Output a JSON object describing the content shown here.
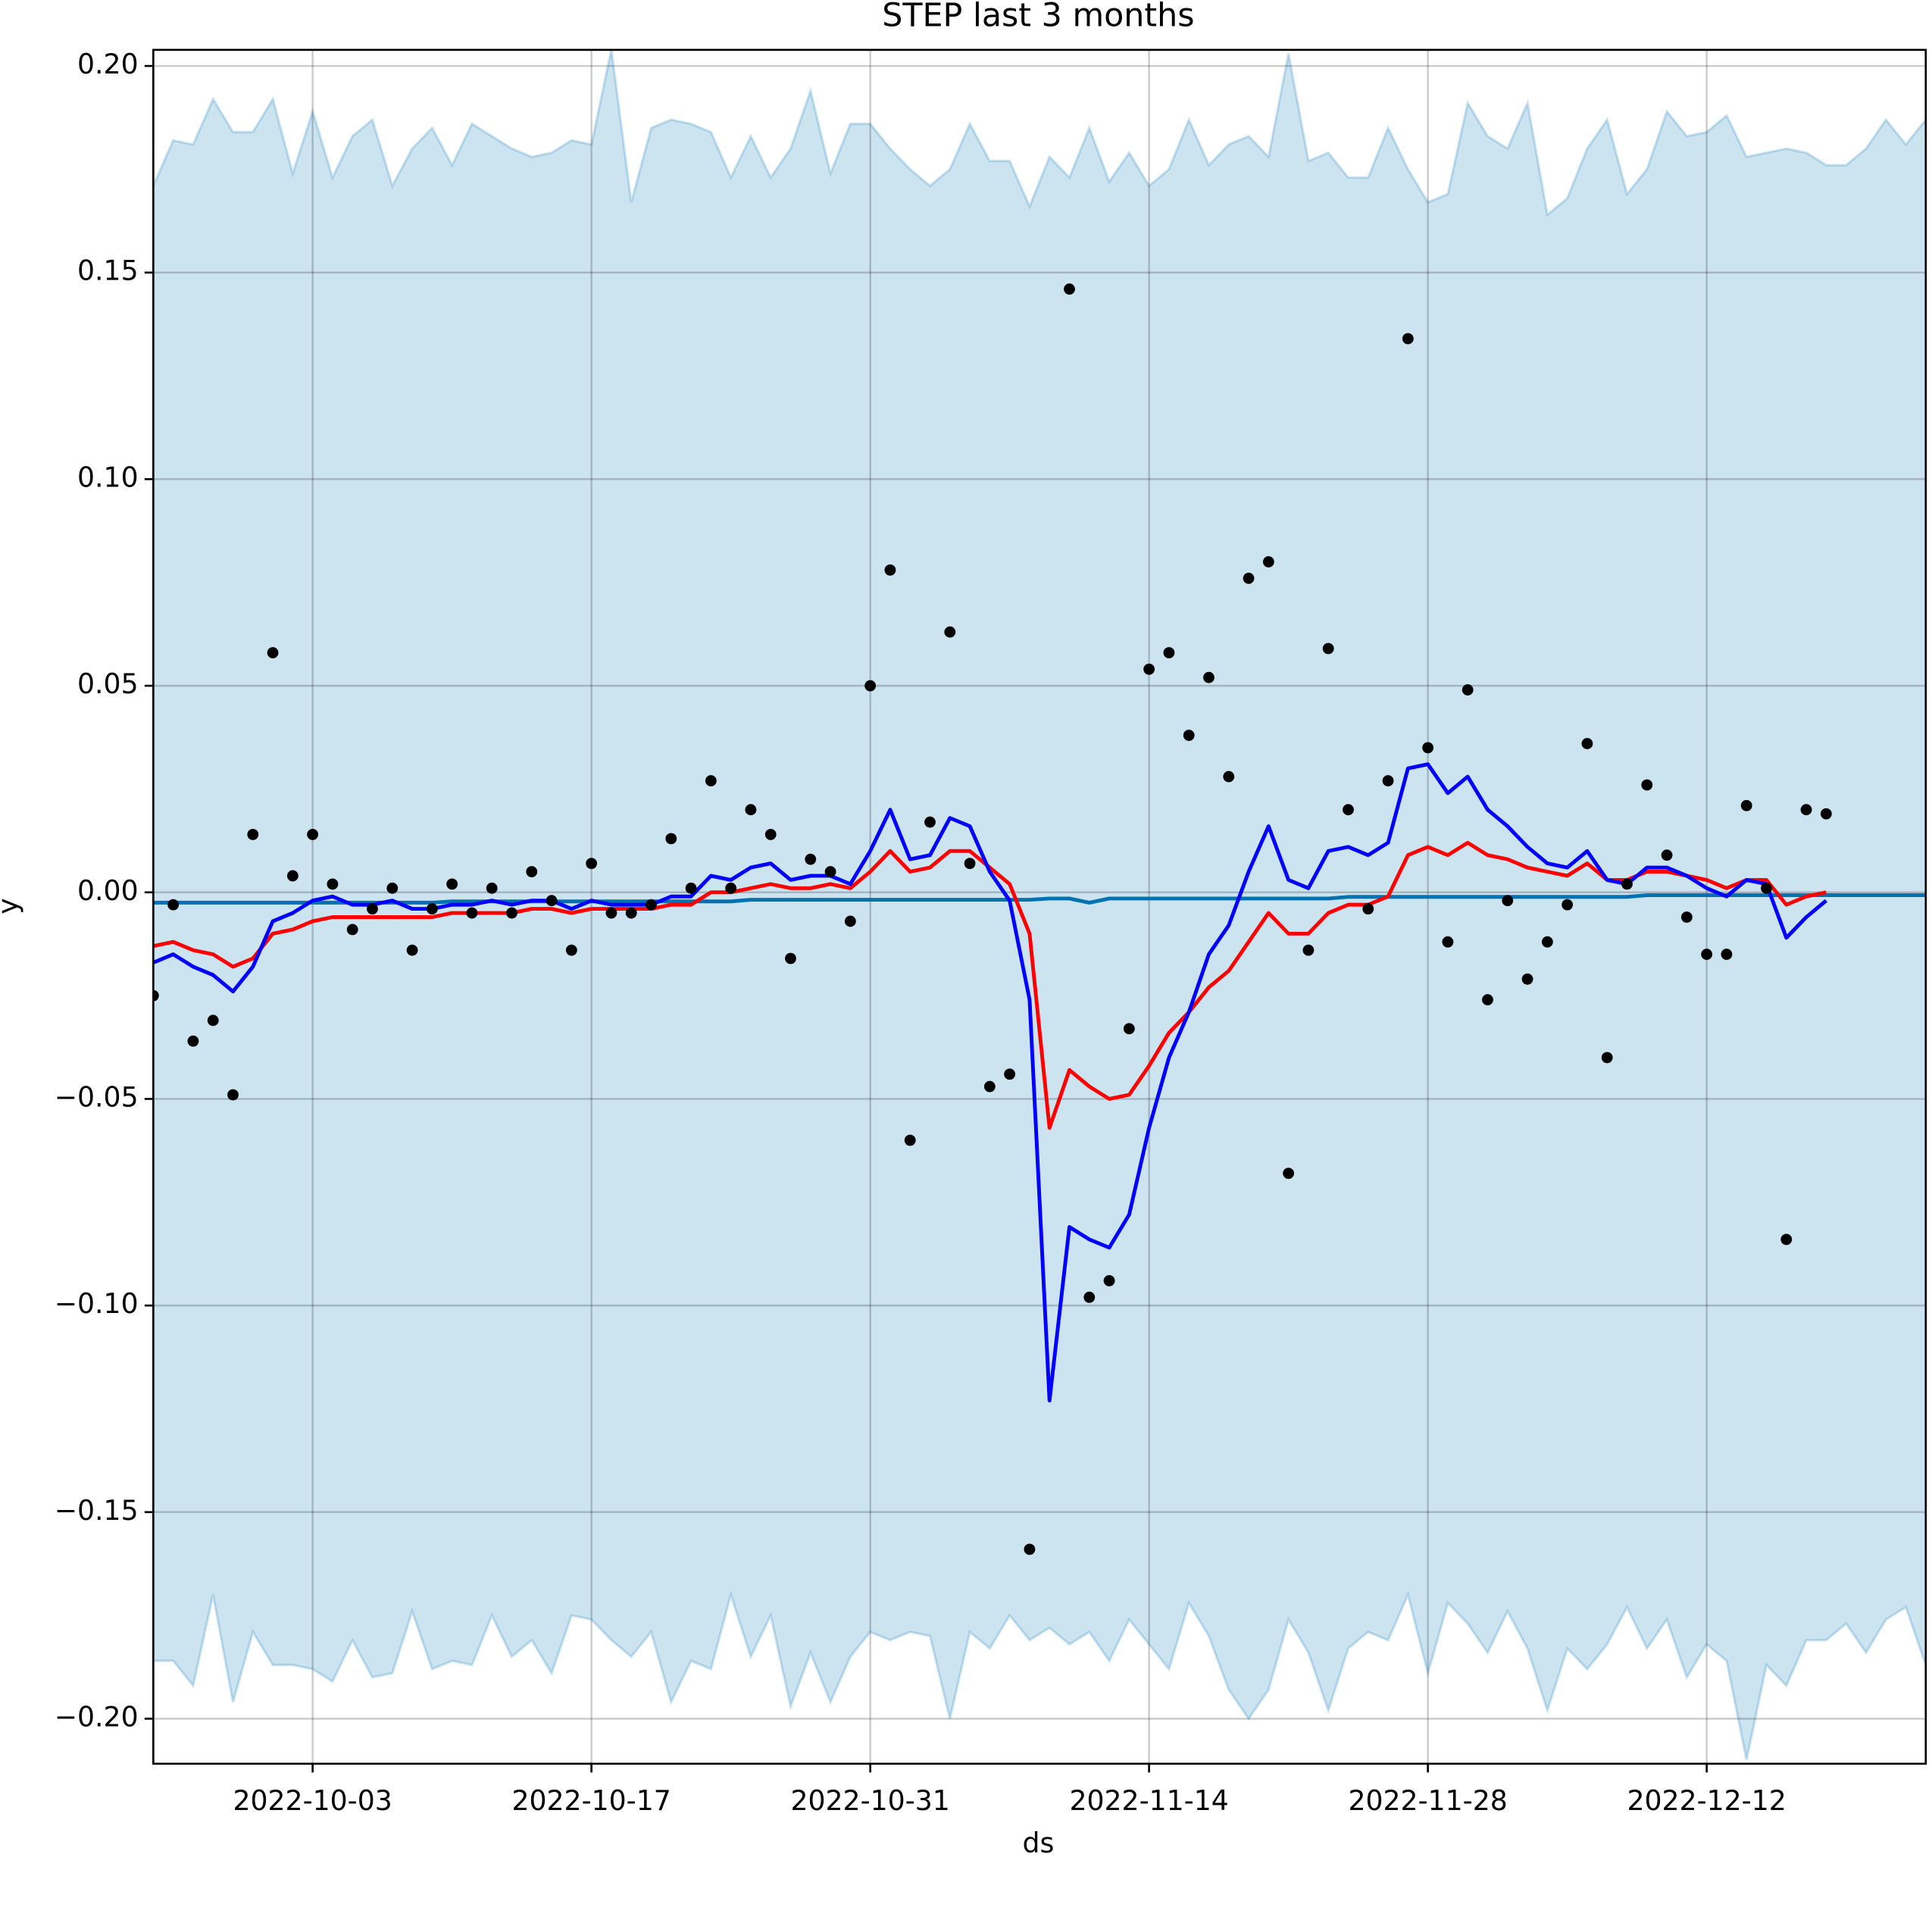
{
  "chart_data": {
    "type": "forecast",
    "title": "STEP last 3 months",
    "x_label": "ds",
    "y_label": "y",
    "x": [
      "2022-09-25",
      "2022-09-26",
      "2022-09-27",
      "2022-09-28",
      "2022-09-29",
      "2022-09-30",
      "2022-10-01",
      "2022-10-02",
      "2022-10-03",
      "2022-10-04",
      "2022-10-05",
      "2022-10-06",
      "2022-10-07",
      "2022-10-08",
      "2022-10-09",
      "2022-10-10",
      "2022-10-11",
      "2022-10-12",
      "2022-10-13",
      "2022-10-14",
      "2022-10-15",
      "2022-10-16",
      "2022-10-17",
      "2022-10-18",
      "2022-10-19",
      "2022-10-20",
      "2022-10-21",
      "2022-10-22",
      "2022-10-23",
      "2022-10-24",
      "2022-10-25",
      "2022-10-26",
      "2022-10-27",
      "2022-10-28",
      "2022-10-29",
      "2022-10-30",
      "2022-10-31",
      "2022-11-01",
      "2022-11-02",
      "2022-11-03",
      "2022-11-04",
      "2022-11-05",
      "2022-11-06",
      "2022-11-07",
      "2022-11-08",
      "2022-11-09",
      "2022-11-10",
      "2022-11-11",
      "2022-11-12",
      "2022-11-13",
      "2022-11-14",
      "2022-11-15",
      "2022-11-16",
      "2022-11-17",
      "2022-11-18",
      "2022-11-19",
      "2022-11-20",
      "2022-11-21",
      "2022-11-22",
      "2022-11-23",
      "2022-11-24",
      "2022-11-25",
      "2022-11-26",
      "2022-11-27",
      "2022-11-28",
      "2022-11-29",
      "2022-11-30",
      "2022-12-01",
      "2022-12-02",
      "2022-12-03",
      "2022-12-04",
      "2022-12-05",
      "2022-12-06",
      "2022-12-07",
      "2022-12-08",
      "2022-12-09",
      "2022-12-10",
      "2022-12-11",
      "2022-12-12",
      "2022-12-13",
      "2022-12-14",
      "2022-12-15",
      "2022-12-16",
      "2022-12-17",
      "2022-12-18",
      "2022-12-19",
      "2022-12-20",
      "2022-12-21",
      "2022-12-22",
      "2022-12-23"
    ],
    "band": {
      "color": "#0072b2",
      "upper": [
        0.171,
        0.182,
        0.181,
        0.192,
        0.184,
        0.184,
        0.192,
        0.174,
        0.189,
        0.173,
        0.183,
        0.187,
        0.171,
        0.18,
        0.185,
        0.176,
        0.186,
        0.183,
        0.18,
        0.178,
        0.179,
        0.182,
        0.181,
        0.204,
        0.167,
        0.185,
        0.187,
        0.186,
        0.184,
        0.173,
        0.183,
        0.173,
        0.18,
        0.194,
        0.174,
        0.186,
        0.186,
        0.18,
        0.175,
        0.171,
        0.175,
        0.186,
        0.177,
        0.177,
        0.166,
        0.178,
        0.173,
        0.185,
        0.172,
        0.179,
        0.171,
        0.175,
        0.187,
        0.176,
        0.181,
        0.183,
        0.178,
        0.203,
        0.177,
        0.179,
        0.173,
        0.173,
        0.185,
        0.175,
        0.167,
        0.169,
        0.191,
        0.183,
        0.18,
        0.191,
        0.164,
        0.168,
        0.18,
        0.187,
        0.169,
        0.175,
        0.189,
        0.183,
        0.184,
        0.188,
        0.178,
        0.179,
        0.18,
        0.179,
        0.176,
        0.176,
        0.18,
        0.187,
        0.181,
        0.187
      ],
      "lower": [
        -0.186,
        -0.186,
        -0.192,
        -0.17,
        -0.196,
        -0.179,
        -0.187,
        -0.187,
        -0.188,
        -0.191,
        -0.181,
        -0.19,
        -0.189,
        -0.174,
        -0.188,
        -0.186,
        -0.187,
        -0.175,
        -0.185,
        -0.181,
        -0.189,
        -0.175,
        -0.176,
        -0.181,
        -0.185,
        -0.179,
        -0.196,
        -0.186,
        -0.188,
        -0.17,
        -0.185,
        -0.175,
        -0.197,
        -0.184,
        -0.196,
        -0.185,
        -0.179,
        -0.181,
        -0.179,
        -0.18,
        -0.2,
        -0.179,
        -0.183,
        -0.175,
        -0.181,
        -0.178,
        -0.182,
        -0.179,
        -0.186,
        -0.176,
        -0.182,
        -0.188,
        -0.172,
        -0.18,
        -0.193,
        -0.2,
        -0.193,
        -0.176,
        -0.184,
        -0.198,
        -0.183,
        -0.179,
        -0.181,
        -0.17,
        -0.189,
        -0.172,
        -0.177,
        -0.184,
        -0.174,
        -0.183,
        -0.198,
        -0.183,
        -0.188,
        -0.182,
        -0.173,
        -0.183,
        -0.176,
        -0.19,
        -0.182,
        -0.186,
        -0.21,
        -0.187,
        -0.192,
        -0.181,
        -0.181,
        -0.177,
        -0.184,
        -0.176,
        -0.173,
        -0.187
      ]
    },
    "points": {
      "color": "#000000",
      "values": [
        -0.025,
        -0.003,
        -0.036,
        -0.031,
        -0.049,
        0.014,
        0.058,
        0.004,
        0.014,
        0.002,
        -0.009,
        -0.004,
        0.001,
        -0.014,
        -0.004,
        0.002,
        -0.005,
        0.001,
        -0.005,
        0.005,
        -0.002,
        -0.014,
        0.007,
        -0.005,
        -0.005,
        -0.003,
        0.013,
        0.001,
        0.027,
        0.001,
        0.02,
        0.014,
        -0.016,
        0.008,
        0.005,
        -0.007,
        0.05,
        0.078,
        -0.06,
        0.017,
        0.063,
        0.007,
        -0.047,
        -0.044,
        -0.159,
        null,
        0.146,
        -0.098,
        -0.094,
        -0.033,
        0.054,
        0.058,
        0.038,
        0.052,
        0.028,
        0.076,
        0.08,
        -0.068,
        -0.014,
        0.059,
        0.02,
        -0.004,
        0.027,
        0.134,
        0.035,
        -0.012,
        0.049,
        -0.026,
        -0.002,
        -0.021,
        -0.012,
        -0.003,
        0.036,
        -0.04,
        0.002,
        0.026,
        0.009,
        -0.006,
        -0.015,
        -0.015,
        0.021,
        0.001,
        -0.084,
        0.02,
        0.019,
        null,
        null,
        null,
        null,
        null
      ]
    },
    "series": [
      {
        "color": "#0072b2",
        "values": [
          -0.0025,
          -0.0025,
          -0.0025,
          -0.0025,
          -0.0025,
          -0.0025,
          -0.0025,
          -0.0025,
          -0.0025,
          -0.0025,
          -0.0025,
          -0.0025,
          -0.0025,
          -0.0025,
          -0.0025,
          -0.0022,
          -0.0022,
          -0.0022,
          -0.0022,
          -0.0022,
          -0.0022,
          -0.0022,
          -0.0022,
          -0.0022,
          -0.0022,
          -0.0022,
          -0.0022,
          -0.0022,
          -0.0022,
          -0.0022,
          -0.0018,
          -0.0018,
          -0.0018,
          -0.0018,
          -0.0018,
          -0.0018,
          -0.0018,
          -0.0018,
          -0.0018,
          -0.0018,
          -0.0018,
          -0.0018,
          -0.0018,
          -0.0018,
          -0.0018,
          -0.0015,
          -0.0015,
          -0.0025,
          -0.0015,
          -0.0015,
          -0.0015,
          -0.0015,
          -0.0015,
          -0.0015,
          -0.0015,
          -0.0015,
          -0.0015,
          -0.0015,
          -0.0015,
          -0.0015,
          -0.0011,
          -0.0011,
          -0.0011,
          -0.0011,
          -0.0011,
          -0.0011,
          -0.0011,
          -0.0011,
          -0.0011,
          -0.0011,
          -0.0011,
          -0.0011,
          -0.0011,
          -0.0011,
          -0.0011,
          -0.0007,
          -0.0007,
          -0.0007,
          -0.0007,
          -0.0007,
          -0.0007,
          -0.0007,
          -0.0007,
          -0.0007,
          -0.0007,
          -0.0007,
          -0.0007,
          -0.0007,
          -0.0007,
          -0.0007
        ]
      },
      {
        "color": "#ff0000",
        "values": [
          -0.013,
          -0.012,
          -0.014,
          -0.015,
          -0.018,
          -0.016,
          -0.01,
          -0.009,
          -0.007,
          -0.006,
          -0.006,
          -0.006,
          -0.006,
          -0.006,
          -0.006,
          -0.005,
          -0.005,
          -0.005,
          -0.005,
          -0.004,
          -0.004,
          -0.005,
          -0.004,
          -0.004,
          -0.004,
          -0.004,
          -0.003,
          -0.003,
          0.0,
          0.0,
          0.001,
          0.002,
          0.001,
          0.001,
          0.002,
          0.001,
          0.005,
          0.01,
          0.005,
          0.006,
          0.01,
          0.01,
          0.006,
          0.002,
          -0.01,
          -0.057,
          -0.043,
          -0.047,
          -0.05,
          -0.049,
          -0.042,
          -0.034,
          -0.029,
          -0.023,
          -0.019,
          -0.012,
          -0.005,
          -0.01,
          -0.01,
          -0.005,
          -0.003,
          -0.003,
          -0.001,
          0.009,
          0.011,
          0.009,
          0.012,
          0.009,
          0.008,
          0.006,
          0.005,
          0.004,
          0.007,
          0.003,
          0.003,
          0.005,
          0.005,
          0.004,
          0.003,
          0.001,
          0.003,
          0.003,
          -0.003,
          -0.001,
          0.0,
          null,
          null,
          null,
          null,
          null
        ]
      },
      {
        "color": "#0000ff",
        "values": [
          -0.017,
          -0.015,
          -0.018,
          -0.02,
          -0.024,
          -0.018,
          -0.007,
          -0.005,
          -0.002,
          -0.001,
          -0.003,
          -0.003,
          -0.002,
          -0.004,
          -0.004,
          -0.003,
          -0.003,
          -0.002,
          -0.003,
          -0.002,
          -0.002,
          -0.004,
          -0.002,
          -0.003,
          -0.003,
          -0.003,
          -0.001,
          -0.001,
          0.004,
          0.003,
          0.006,
          0.007,
          0.003,
          0.004,
          0.004,
          0.002,
          0.01,
          0.02,
          0.008,
          0.009,
          0.018,
          0.016,
          0.005,
          -0.002,
          -0.026,
          -0.123,
          -0.081,
          -0.084,
          -0.086,
          -0.078,
          -0.057,
          -0.04,
          -0.029,
          -0.015,
          -0.008,
          0.005,
          0.016,
          0.003,
          0.001,
          0.01,
          0.011,
          0.009,
          0.012,
          0.03,
          0.031,
          0.024,
          0.028,
          0.02,
          0.016,
          0.011,
          0.007,
          0.006,
          0.01,
          0.003,
          0.002,
          0.006,
          0.006,
          0.004,
          0.001,
          -0.001,
          0.003,
          0.002,
          -0.011,
          -0.006,
          -0.002,
          null,
          null,
          null,
          null,
          null
        ]
      }
    ],
    "xlim": [
      "2022-09-25",
      "2022-12-23"
    ],
    "xticks": [
      "2022-10-03",
      "2022-10-17",
      "2022-10-31",
      "2022-11-14",
      "2022-11-28",
      "2022-12-12"
    ],
    "ylim": [
      -0.2109,
      0.2039
    ],
    "yticks": [
      {
        "value": -0.2,
        "label": "−0.20"
      },
      {
        "value": -0.15,
        "label": "−0.15"
      },
      {
        "value": -0.1,
        "label": "−0.10"
      },
      {
        "value": -0.05,
        "label": "−0.05"
      },
      {
        "value": 0,
        "label": "0.00"
      },
      {
        "value": 0.05,
        "label": "0.05"
      },
      {
        "value": 0.1,
        "label": "0.10"
      },
      {
        "value": 0.15,
        "label": "0.15"
      },
      {
        "value": 0.2,
        "label": "0.20"
      }
    ],
    "grid": true
  }
}
